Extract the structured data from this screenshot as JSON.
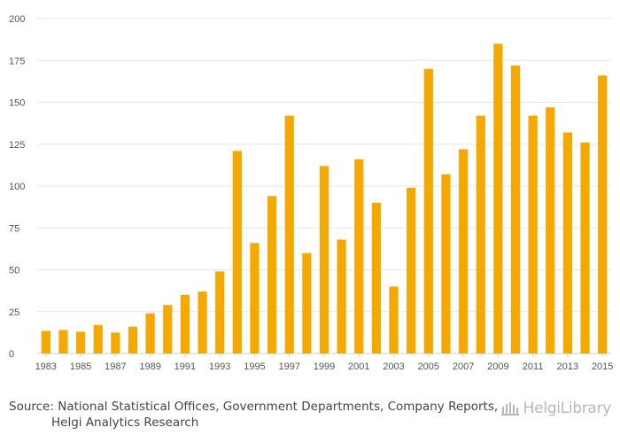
{
  "chart_data": {
    "type": "bar",
    "categories": [
      "1983",
      "1984",
      "1985",
      "1986",
      "1987",
      "1988",
      "1989",
      "1990",
      "1991",
      "1992",
      "1993",
      "1994",
      "1995",
      "1996",
      "1997",
      "1998",
      "1999",
      "2000",
      "2001",
      "2002",
      "2003",
      "2004",
      "2005",
      "2006",
      "2007",
      "2008",
      "2009",
      "2010",
      "2011",
      "2012",
      "2013",
      "2014",
      "2015"
    ],
    "values": [
      13.5,
      14,
      13,
      17,
      12.5,
      16,
      24,
      29,
      35,
      37,
      49,
      121,
      66,
      94,
      142,
      60,
      112,
      68,
      116,
      90,
      40,
      99,
      170,
      107,
      122,
      142,
      185,
      172,
      142,
      147,
      132,
      126,
      166
    ],
    "x_tick_labels": [
      "1983",
      "1985",
      "1987",
      "1989",
      "1991",
      "1993",
      "1995",
      "1997",
      "1999",
      "2001",
      "2003",
      "2005",
      "2007",
      "2009",
      "2011",
      "2013",
      "2015"
    ],
    "y_ticks": [
      0,
      25,
      50,
      75,
      100,
      125,
      150,
      175,
      200
    ],
    "ylim": [
      0,
      200
    ],
    "title": "",
    "xlabel": "",
    "ylabel": "",
    "grid": true,
    "bar_color": "#f5a800"
  },
  "footer": {
    "source_label": "Source:",
    "source_line1": "National Statistical Offices, Government Departments, Company Reports,",
    "source_line2": "Helgi Analytics Research",
    "logo_text": "HelgiLibrary"
  },
  "icons": {
    "logo_icon": "library-building-icon"
  }
}
